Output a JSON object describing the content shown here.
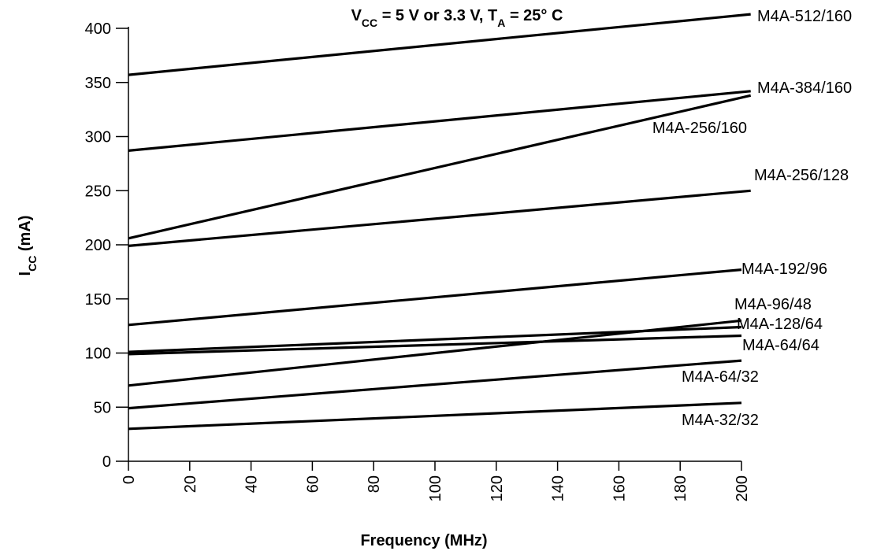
{
  "chart_data": {
    "type": "line",
    "title": {
      "parts": [
        {
          "text": "V",
          "sub": false
        },
        {
          "text": "CC",
          "sub": true
        },
        {
          "text": " = 5 V or 3.3 V, T",
          "sub": false
        },
        {
          "text": "A",
          "sub": true
        },
        {
          "text": " = 25° C",
          "sub": false
        }
      ]
    },
    "xlabel": "Frequency (MHz)",
    "ylabel": {
      "parts": [
        {
          "text": "I",
          "sub": false
        },
        {
          "text": "CC",
          "sub": true
        },
        {
          "text": " (mA)",
          "sub": false
        }
      ]
    },
    "xlim": [
      0,
      200
    ],
    "ylim": [
      0,
      400
    ],
    "xticks": [
      0,
      20,
      40,
      60,
      80,
      100,
      120,
      140,
      160,
      180,
      200
    ],
    "yticks": [
      0,
      50,
      100,
      150,
      200,
      250,
      300,
      350,
      400
    ],
    "grid": false,
    "legend": "direct labels at line ends",
    "series": [
      {
        "name": "M4A-512/160",
        "x": [
          0,
          203
        ],
        "y": [
          357,
          413
        ]
      },
      {
        "name": "M4A-384/160",
        "x": [
          0,
          203
        ],
        "y": [
          287,
          342
        ]
      },
      {
        "name": "M4A-256/160",
        "x": [
          0,
          203
        ],
        "y": [
          206,
          338
        ]
      },
      {
        "name": "M4A-256/128",
        "x": [
          0,
          203
        ],
        "y": [
          199,
          250
        ]
      },
      {
        "name": "M4A-192/96",
        "x": [
          0,
          200
        ],
        "y": [
          126,
          177
        ]
      },
      {
        "name": "M4A-96/48",
        "x": [
          0,
          200
        ],
        "y": [
          70,
          130
        ]
      },
      {
        "name": "M4A-128/64",
        "x": [
          0,
          200
        ],
        "y": [
          101,
          124
        ]
      },
      {
        "name": "M4A-64/64",
        "x": [
          0,
          200
        ],
        "y": [
          99,
          116
        ]
      },
      {
        "name": "M4A-64/32",
        "x": [
          0,
          200
        ],
        "y": [
          49,
          93
        ]
      },
      {
        "name": "M4A-32/32",
        "x": [
          0,
          200
        ],
        "y": [
          30,
          54
        ]
      }
    ]
  }
}
